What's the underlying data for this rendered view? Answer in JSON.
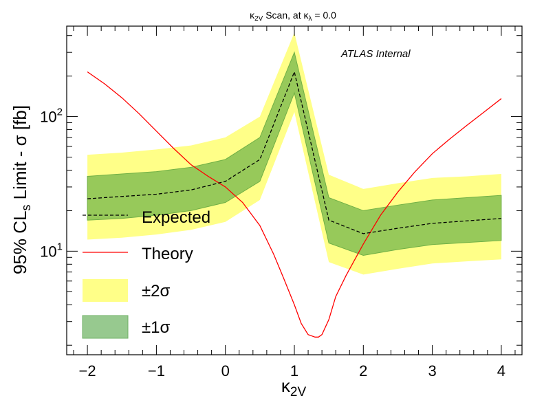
{
  "chart_data": {
    "type": "line",
    "title": {
      "kappa": "κ",
      "sub1": "2V",
      "mid": " Scan, at κ",
      "sub2": "λ",
      "tail": " = 0.0"
    },
    "xlabel": {
      "main": "κ",
      "sub": "2V"
    },
    "ylabel": {
      "main": "95% CL",
      "sub": "s",
      "tail": " Limit - σ [fb]"
    },
    "annotation": "ATLAS Internal",
    "xlim": [
      -2.3,
      4.3
    ],
    "ylim": [
      1.7,
      470
    ],
    "yscale": "log",
    "xticks": [
      -2,
      -1,
      0,
      1,
      2,
      3,
      4
    ],
    "xtick_labels": [
      "−2",
      "−1",
      "0",
      "1",
      "2",
      "3",
      "4"
    ],
    "yticks": [
      10,
      100
    ],
    "ytick_labels": [
      {
        "base": "10",
        "exp": "1"
      },
      {
        "base": "10",
        "exp": "2"
      }
    ],
    "legend": {
      "placement": "left",
      "entries": [
        {
          "label": "Expected",
          "kind": "dashed-line",
          "color": "#000000"
        },
        {
          "label": "Theory",
          "kind": "line",
          "color": "#ff0000"
        },
        {
          "label": "±2σ",
          "kind": "box",
          "color": "#ffff88"
        },
        {
          "label": "±1σ",
          "kind": "box",
          "color": "#97c97f"
        }
      ]
    },
    "colors": {
      "band2": "#ffff88",
      "band1": "#97c95a",
      "band1_edge": "#70b045",
      "theory": "#ff0000",
      "expected": "#000000"
    },
    "expected": {
      "x": [
        -2,
        -1.5,
        -1,
        -0.5,
        0,
        0.5,
        1,
        1.5,
        2,
        2.5,
        3,
        3.5,
        4
      ],
      "y": [
        24.5,
        25.5,
        26.5,
        28.5,
        33,
        48,
        215,
        17,
        13.5,
        14.8,
        16.1,
        16.8,
        17.5
      ]
    },
    "band_1sigma": {
      "x": [
        -2,
        -1.5,
        -1,
        -0.5,
        0,
        0.5,
        1,
        1.5,
        2,
        2.5,
        3,
        3.5,
        4
      ],
      "low": [
        17,
        17.5,
        18.5,
        20,
        23,
        33,
        150,
        11.5,
        9.3,
        10.3,
        11.2,
        11.6,
        12
      ],
      "high": [
        36,
        37.5,
        39,
        42,
        48,
        70,
        300,
        25,
        20,
        22,
        24,
        25,
        26
      ]
    },
    "band_2sigma": {
      "x": [
        -2,
        -1.5,
        -1,
        -0.5,
        0,
        0.5,
        1,
        1.5,
        2,
        2.5,
        3,
        3.5,
        4
      ],
      "low": [
        12.2,
        12.6,
        13.3,
        14.4,
        16.5,
        24,
        108,
        8.3,
        6.7,
        7.4,
        8.1,
        8.4,
        8.7
      ],
      "high": [
        52,
        54,
        57,
        61,
        70,
        100,
        420,
        37,
        29,
        32,
        35,
        36,
        37.5
      ]
    },
    "theory": {
      "x": [
        -2,
        -1.75,
        -1.5,
        -1.25,
        -1,
        -0.75,
        -0.5,
        -0.25,
        0,
        0.25,
        0.5,
        0.7,
        0.85,
        1,
        1.1,
        1.2,
        1.3,
        1.35,
        1.4,
        1.5,
        1.6,
        1.75,
        2,
        2.25,
        2.5,
        2.75,
        3,
        3.25,
        3.5,
        3.75,
        4
      ],
      "y": [
        215,
        175,
        138,
        105,
        78,
        58,
        44,
        36,
        30,
        23,
        15.5,
        9.5,
        6.2,
        4.0,
        2.9,
        2.4,
        2.3,
        2.3,
        2.4,
        3.1,
        4.6,
        6.6,
        11.3,
        18.5,
        27.5,
        39,
        53,
        68,
        86,
        108,
        136
      ]
    }
  }
}
